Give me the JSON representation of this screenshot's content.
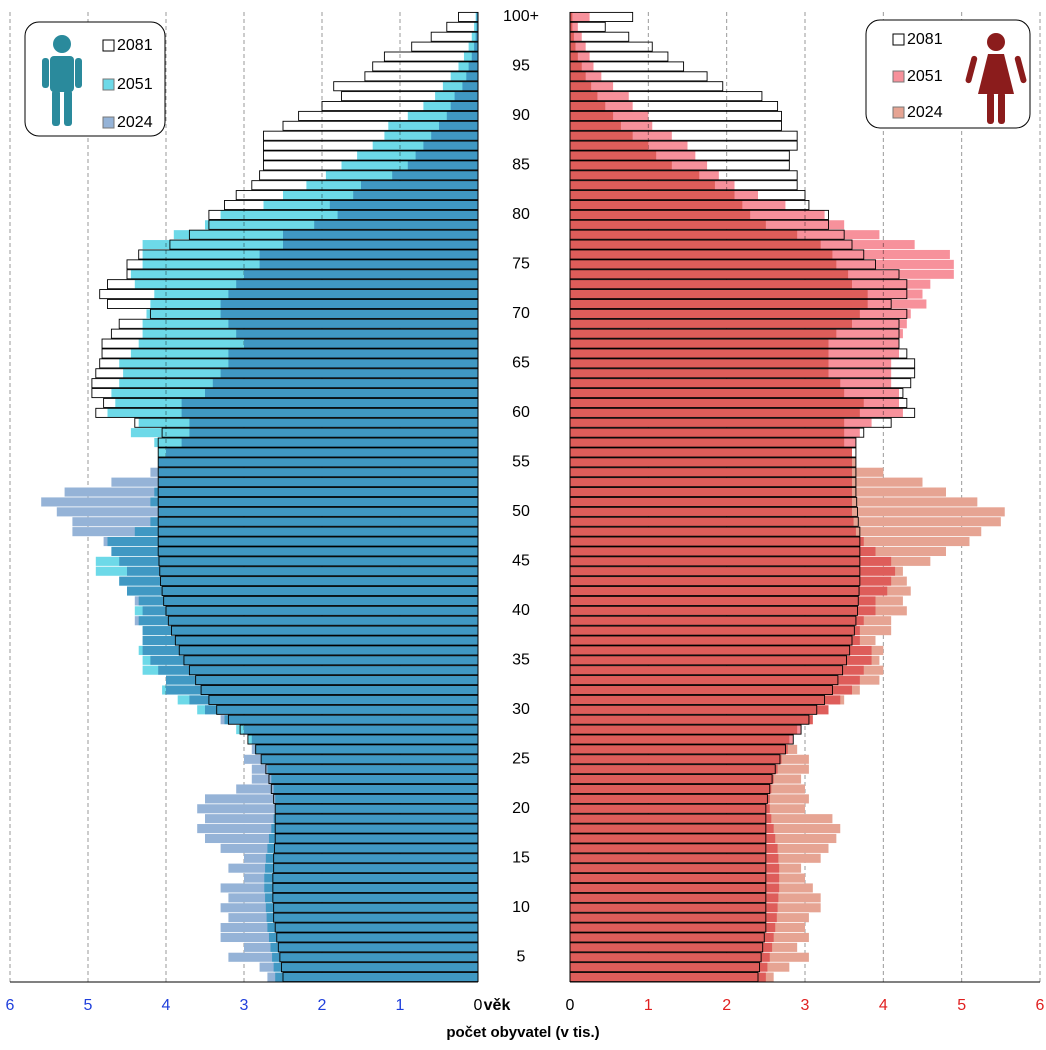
{
  "chart_data": {
    "type": "population_pyramid",
    "xlabel": "počet obyvatel (v tis.)",
    "ylabel": "věk",
    "xlim": [
      0,
      6
    ],
    "xticks": [
      0,
      1,
      2,
      3,
      4,
      5,
      6
    ],
    "grid": true,
    "categories": [
      null,
      null,
      "5",
      null,
      null,
      null,
      null,
      "10",
      null,
      null,
      null,
      null,
      "15",
      null,
      null,
      null,
      null,
      "20",
      null,
      null,
      null,
      null,
      "25",
      null,
      null,
      null,
      null,
      "30",
      null,
      null,
      null,
      null,
      "35",
      null,
      null,
      null,
      null,
      "40",
      null,
      null,
      null,
      null,
      "45",
      null,
      null,
      null,
      null,
      "50",
      null,
      null,
      null,
      null,
      "55",
      null,
      null,
      null,
      null,
      "60",
      null,
      null,
      null,
      null,
      "65",
      null,
      null,
      null,
      null,
      "70",
      null,
      null,
      null,
      null,
      "75",
      null,
      null,
      null,
      null,
      "80",
      null,
      null,
      null,
      null,
      "85",
      null,
      null,
      null,
      null,
      "90",
      null,
      null,
      null,
      null,
      "95",
      null,
      null,
      null,
      null,
      "100+"
    ],
    "series_left": [
      {
        "name": "2081",
        "color": "#ffffff",
        "values": [
          2.5,
          2.52,
          2.54,
          2.56,
          2.58,
          2.6,
          2.62,
          2.62,
          2.63,
          2.63,
          2.63,
          2.62,
          2.62,
          2.61,
          2.6,
          2.6,
          2.6,
          2.6,
          2.62,
          2.65,
          2.68,
          2.72,
          2.78,
          2.85,
          2.95,
          3.05,
          3.2,
          3.35,
          3.45,
          3.55,
          3.62,
          3.7,
          3.77,
          3.83,
          3.88,
          3.93,
          3.97,
          4.0,
          4.03,
          4.05,
          4.07,
          4.08,
          4.09,
          4.1,
          4.1,
          4.1,
          4.1,
          4.1,
          4.1,
          4.1,
          4.1,
          4.1,
          4.1,
          4.1,
          4.1,
          4.05,
          4.4,
          4.9,
          4.8,
          4.95,
          4.95,
          4.9,
          4.85,
          4.82,
          4.82,
          4.7,
          4.6,
          4.2,
          4.75,
          4.85,
          4.75,
          4.5,
          4.5,
          4.35,
          3.95,
          3.7,
          3.45,
          3.45,
          3.25,
          3.1,
          2.9,
          2.8,
          2.75,
          2.75,
          2.75,
          2.75,
          2.5,
          2.3,
          2.0,
          1.75,
          1.85,
          1.45,
          1.35,
          1.2,
          0.85,
          0.6,
          0.4,
          0.25
        ]
      },
      {
        "name": "2051",
        "color": "#6dd9e8",
        "values": [
          2.6,
          2.62,
          2.64,
          2.66,
          2.68,
          2.7,
          2.71,
          2.72,
          2.73,
          2.74,
          2.74,
          2.73,
          2.72,
          2.7,
          2.68,
          2.65,
          2.62,
          2.6,
          2.6,
          2.62,
          2.65,
          2.7,
          2.78,
          2.86,
          2.95,
          3.1,
          3.25,
          3.6,
          3.85,
          4.05,
          4.0,
          4.3,
          4.3,
          4.35,
          4.3,
          4.3,
          4.35,
          4.4,
          4.35,
          4.5,
          4.6,
          4.9,
          4.9,
          4.7,
          4.75,
          4.4,
          4.2,
          4.1,
          4.2,
          4.15,
          4.1,
          4.1,
          4.1,
          4.1,
          4.15,
          4.45,
          4.35,
          4.75,
          4.65,
          4.7,
          4.6,
          4.55,
          4.6,
          4.45,
          4.35,
          4.3,
          4.3,
          4.25,
          4.2,
          4.15,
          4.4,
          4.45,
          4.3,
          4.3,
          4.3,
          3.9,
          3.5,
          3.3,
          2.75,
          2.5,
          2.2,
          1.95,
          1.75,
          1.55,
          1.35,
          1.2,
          1.15,
          0.9,
          0.7,
          0.55,
          0.45,
          0.35,
          0.25,
          0.18,
          0.12,
          0.08,
          0.05,
          0.03
        ]
      },
      {
        "name": "2024",
        "color": "#95b3d7",
        "values": [
          2.7,
          2.8,
          3.2,
          3.0,
          3.3,
          3.3,
          3.2,
          3.3,
          3.2,
          3.3,
          3.0,
          3.2,
          3.0,
          3.3,
          3.5,
          3.6,
          3.5,
          3.6,
          3.5,
          3.1,
          2.9,
          2.9,
          3.0,
          2.9,
          2.9,
          3.0,
          3.3,
          3.5,
          3.7,
          4.0,
          4.0,
          4.1,
          4.2,
          4.3,
          4.3,
          4.3,
          4.4,
          4.3,
          4.4,
          4.5,
          4.6,
          4.5,
          4.6,
          4.7,
          4.8,
          5.2,
          5.2,
          5.4,
          5.6,
          5.3,
          4.7,
          4.2,
          4.1,
          4.0,
          3.8,
          3.7,
          3.7,
          3.8,
          3.8,
          3.5,
          3.4,
          3.3,
          3.2,
          3.2,
          3.0,
          3.1,
          3.2,
          3.3,
          3.3,
          3.2,
          3.1,
          3.0,
          2.8,
          2.8,
          2.5,
          2.5,
          2.1,
          1.8,
          1.9,
          1.6,
          1.5,
          1.1,
          0.9,
          0.8,
          0.7,
          0.6,
          0.5,
          0.4,
          0.35,
          0.3,
          0.2,
          0.15,
          0.12,
          0.08,
          0.05,
          0.03,
          0.02,
          0.02
        ]
      }
    ],
    "series_right": [
      {
        "name": "2081",
        "color": "#ffffff",
        "values": [
          2.4,
          2.42,
          2.44,
          2.46,
          2.48,
          2.5,
          2.5,
          2.5,
          2.5,
          2.5,
          2.5,
          2.5,
          2.5,
          2.5,
          2.5,
          2.5,
          2.5,
          2.5,
          2.52,
          2.55,
          2.58,
          2.62,
          2.68,
          2.75,
          2.85,
          2.95,
          3.05,
          3.15,
          3.25,
          3.35,
          3.42,
          3.48,
          3.53,
          3.57,
          3.6,
          3.63,
          3.65,
          3.67,
          3.68,
          3.69,
          3.7,
          3.7,
          3.7,
          3.7,
          3.7,
          3.7,
          3.68,
          3.67,
          3.66,
          3.65,
          3.65,
          3.65,
          3.65,
          3.65,
          3.65,
          3.75,
          4.1,
          4.4,
          4.3,
          4.25,
          4.35,
          4.4,
          4.4,
          4.3,
          4.2,
          4.2,
          4.2,
          4.3,
          4.1,
          4.3,
          4.3,
          4.2,
          3.9,
          3.75,
          3.6,
          3.5,
          3.3,
          3.3,
          3.05,
          3.0,
          2.9,
          2.9,
          2.8,
          2.8,
          2.9,
          2.9,
          2.7,
          2.7,
          2.65,
          2.45,
          1.95,
          1.75,
          1.45,
          1.25,
          1.05,
          0.75,
          0.45,
          0.8
        ]
      },
      {
        "name": "2051",
        "color": "#f7919b",
        "values": [
          2.5,
          2.52,
          2.55,
          2.58,
          2.6,
          2.62,
          2.64,
          2.65,
          2.66,
          2.67,
          2.67,
          2.67,
          2.66,
          2.65,
          2.62,
          2.6,
          2.57,
          2.55,
          2.55,
          2.57,
          2.6,
          2.65,
          2.7,
          2.78,
          2.85,
          2.95,
          3.1,
          3.3,
          3.45,
          3.6,
          3.7,
          3.75,
          3.85,
          3.85,
          3.7,
          3.7,
          3.75,
          3.9,
          3.9,
          4.05,
          4.1,
          4.15,
          4.1,
          3.9,
          3.75,
          3.65,
          3.62,
          3.6,
          3.6,
          3.6,
          3.6,
          3.6,
          3.6,
          3.6,
          3.65,
          3.7,
          3.85,
          4.25,
          4.2,
          4.2,
          4.1,
          4.1,
          4.1,
          4.2,
          4.2,
          4.25,
          4.3,
          4.35,
          4.55,
          4.5,
          4.6,
          4.9,
          4.9,
          4.85,
          4.4,
          3.95,
          3.5,
          3.25,
          2.75,
          2.4,
          2.1,
          1.9,
          1.75,
          1.6,
          1.5,
          1.3,
          1.05,
          1.0,
          0.8,
          0.75,
          0.55,
          0.4,
          0.3,
          0.25,
          0.2,
          0.15,
          0.1,
          0.25
        ]
      },
      {
        "name": "2024",
        "color": "#e6a493",
        "values": [
          2.6,
          2.8,
          3.05,
          2.9,
          3.05,
          3.0,
          3.05,
          3.2,
          3.2,
          3.1,
          3.0,
          2.95,
          3.2,
          3.3,
          3.4,
          3.45,
          3.35,
          3.0,
          3.05,
          3.0,
          2.95,
          3.05,
          3.05,
          2.9,
          2.8,
          2.9,
          3.1,
          3.3,
          3.5,
          3.7,
          3.95,
          4.0,
          3.95,
          4.0,
          3.9,
          4.1,
          4.1,
          4.3,
          4.25,
          4.35,
          4.3,
          4.25,
          4.6,
          4.8,
          5.1,
          5.25,
          5.5,
          5.55,
          5.2,
          4.8,
          4.5,
          4.0,
          3.65,
          3.6,
          3.5,
          3.5,
          3.5,
          3.7,
          3.75,
          3.5,
          3.45,
          3.3,
          3.3,
          3.3,
          3.3,
          3.4,
          3.6,
          3.7,
          3.8,
          3.8,
          3.6,
          3.55,
          3.4,
          3.35,
          3.2,
          2.9,
          2.5,
          2.3,
          2.2,
          2.1,
          1.85,
          1.65,
          1.3,
          1.1,
          1.0,
          0.8,
          0.65,
          0.55,
          0.45,
          0.35,
          0.27,
          0.2,
          0.15,
          0.1,
          0.07,
          0.05,
          0.03,
          0.03
        ]
      }
    ]
  }
}
